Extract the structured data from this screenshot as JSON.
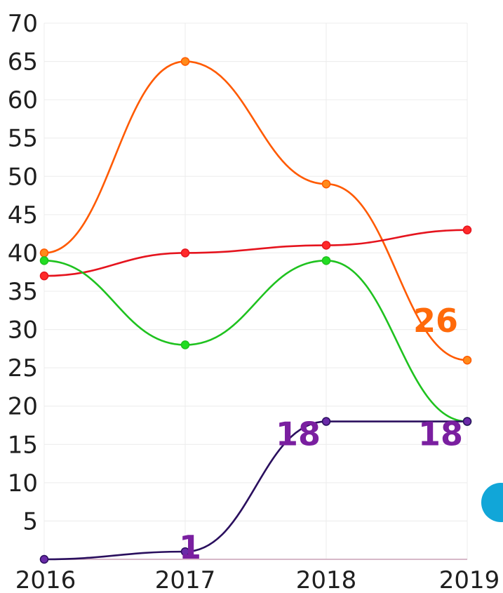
{
  "chart_data": {
    "type": "line",
    "title": "",
    "xlabel": "",
    "ylabel": "",
    "x": [
      "2016",
      "2017",
      "2018",
      "2019"
    ],
    "y_ticks": [
      5,
      10,
      15,
      20,
      25,
      30,
      35,
      40,
      45,
      50,
      55,
      60,
      65,
      70
    ],
    "ylim": [
      0,
      70
    ],
    "grid": true,
    "legend": "none",
    "series": [
      {
        "values": [
          40,
          65,
          49,
          26
        ],
        "color": "#ff5a00",
        "marker_color": "#ff8a1a",
        "labels": [
          "",
          "",
          "",
          "26"
        ],
        "label_color": "#ff6a0a"
      },
      {
        "values": [
          37,
          40,
          41,
          43
        ],
        "color": "#e5141e",
        "marker_color": "#ff2a2a",
        "labels": [
          "",
          "",
          "",
          ""
        ],
        "label_color": "#e5141e"
      },
      {
        "values": [
          39,
          28,
          39,
          18
        ],
        "color": "#1fc21f",
        "marker_color": "#22dd22",
        "labels": [
          "",
          "",
          "",
          ""
        ],
        "label_color": "#1fc21f"
      },
      {
        "values": [
          0,
          1,
          18,
          18
        ],
        "color": "#2a0f5e",
        "marker_color": "#6a2aa8",
        "labels": [
          "",
          "1",
          "18",
          "18"
        ],
        "label_color": "#7a1fa0"
      }
    ]
  }
}
